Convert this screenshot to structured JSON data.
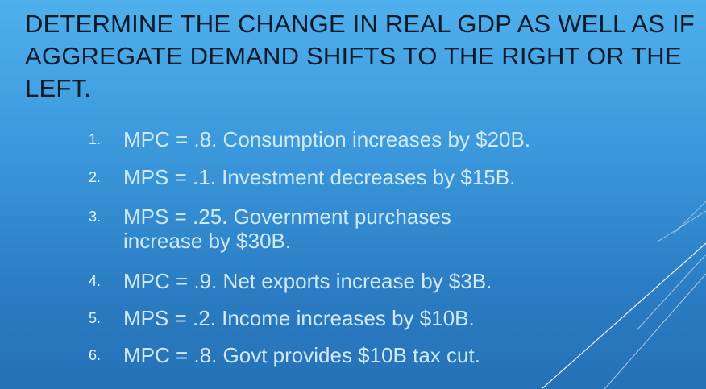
{
  "slide": {
    "title": "DETERMINE THE CHANGE IN REAL GDP AS WELL AS IF AGGREGATE DEMAND SHIFTS TO THE RIGHT OR THE LEFT.",
    "items": [
      {
        "number": "1.",
        "lines": [
          "MPC = .8. Consumption increases by $20B."
        ]
      },
      {
        "number": "2.",
        "lines": [
          "MPS = .1. Investment decreases by $15B."
        ]
      },
      {
        "number": "3.",
        "lines": [
          "MPS = .25. Government purchases",
          "increase by $30B."
        ]
      },
      {
        "number": "4.",
        "lines": [
          "MPC = .9. Net exports increase by $3B."
        ]
      },
      {
        "number": "5.",
        "lines": [
          "MPS = .2.  Income increases by $10B."
        ]
      },
      {
        "number": "6.",
        "lines": [
          "MPC = .8. Govt provides $10B tax cut."
        ]
      }
    ]
  },
  "colors": {
    "title": "#0c1a2a",
    "body_text": "#cfe8fa",
    "background_top": "#4fb0ec",
    "background_bottom": "#2571b6",
    "accent_lines": "#ffffff"
  }
}
